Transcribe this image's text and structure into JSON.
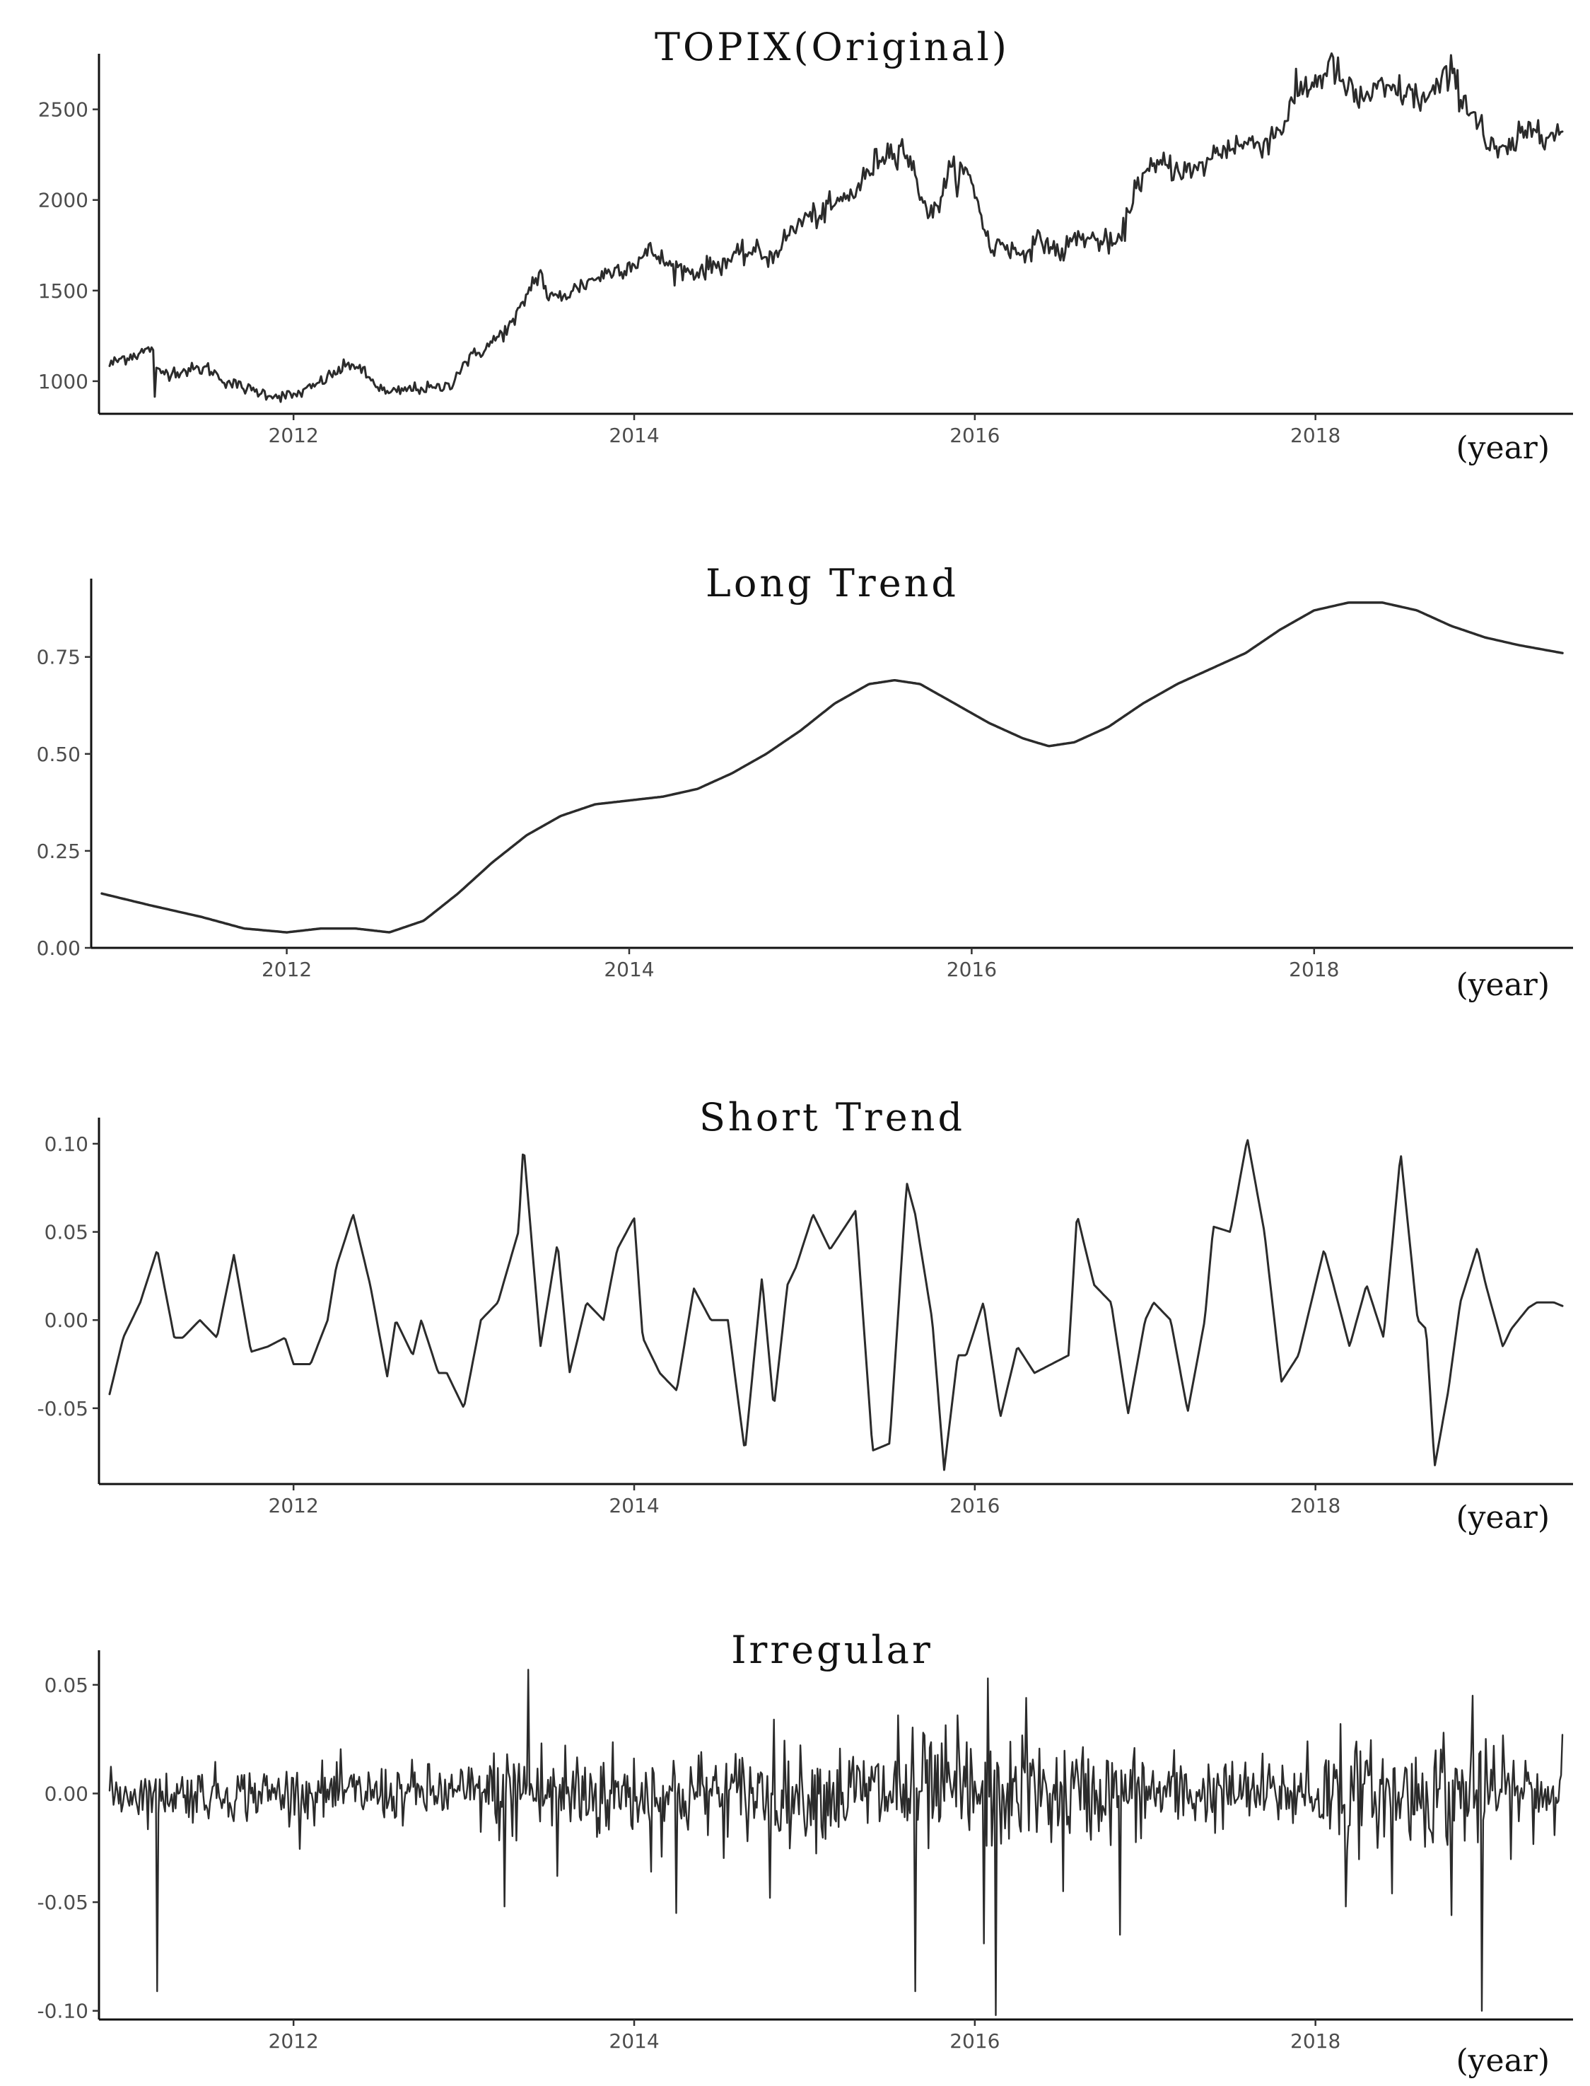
{
  "figure": {
    "background": "#ffffff",
    "line_color": "#2b2b2b",
    "axis_color": "#111111"
  },
  "chart_data": [
    {
      "type": "line",
      "title": "TOPIX(Original)",
      "xlabel": "(year)",
      "ylabel": "",
      "xlim": [
        2010.92,
        2019.45
      ],
      "ylim": [
        820,
        2760
      ],
      "x_ticks": [
        2012,
        2014,
        2016,
        2018
      ],
      "y_ticks": [
        1000,
        1500,
        2000,
        2500
      ],
      "grid": false,
      "series": [
        {
          "noise": 0.018,
          "spikes": [
            [
              2011.19,
              -230
            ]
          ],
          "x": [
            2010.92,
            2011.0,
            2011.15,
            2011.18,
            2011.19,
            2011.25,
            2011.5,
            2011.6,
            2011.75,
            2011.9,
            2012.0,
            2012.1,
            2012.25,
            2012.35,
            2012.45,
            2012.55,
            2012.7,
            2012.85,
            2012.92,
            2013.0,
            2013.15,
            2013.3,
            2013.4,
            2013.45,
            2013.5,
            2013.6,
            2013.75,
            2013.9,
            2014.0,
            2014.1,
            2014.2,
            2014.35,
            2014.5,
            2014.7,
            2014.8,
            2014.9,
            2015.0,
            2015.1,
            2015.3,
            2015.45,
            2015.58,
            2015.62,
            2015.7,
            2015.75,
            2015.85,
            2015.95,
            2016.0,
            2016.1,
            2016.15,
            2016.25,
            2016.4,
            2016.5,
            2016.6,
            2016.85,
            2016.95,
            2017.1,
            2017.3,
            2017.4,
            2017.5,
            2017.7,
            2017.8,
            2017.9,
            2018.0,
            2018.1,
            2018.15,
            2018.25,
            2018.35,
            2018.5,
            2018.65,
            2018.75,
            2018.8,
            2018.9,
            2018.97,
            2019.0,
            2019.1,
            2019.3,
            2019.4,
            2019.45
          ],
          "y": [
            1090,
            1130,
            1170,
            1200,
            1050,
            1050,
            1070,
            1000,
            950,
            920,
            920,
            960,
            1050,
            1100,
            1010,
            930,
            960,
            960,
            980,
            1100,
            1200,
            1330,
            1540,
            1600,
            1450,
            1480,
            1560,
            1620,
            1650,
            1720,
            1640,
            1600,
            1650,
            1720,
            1680,
            1800,
            1900,
            1920,
            2050,
            2250,
            2300,
            2200,
            2000,
            1900,
            2150,
            2150,
            2050,
            1700,
            1780,
            1700,
            1780,
            1700,
            1800,
            1750,
            2100,
            2200,
            2150,
            2250,
            2300,
            2320,
            2400,
            2600,
            2650,
            2750,
            2650,
            2550,
            2600,
            2600,
            2550,
            2650,
            2700,
            2500,
            2450,
            2300,
            2250,
            2420,
            2350,
            2380
          ]
        }
      ]
    },
    {
      "type": "line",
      "title": "Long Trend",
      "xlabel": "(year)",
      "ylabel": "",
      "xlim": [
        2010.92,
        2019.45
      ],
      "ylim": [
        0,
        0.93
      ],
      "x_ticks": [
        2012,
        2014,
        2016,
        2018
      ],
      "y_ticks": [
        0.0,
        0.25,
        0.5,
        0.75
      ],
      "y_tick_labels": [
        "0.00",
        "0.25",
        "0.50",
        "0.75"
      ],
      "grid": false,
      "series": [
        {
          "x": [
            2010.92,
            2011.2,
            2011.5,
            2011.75,
            2012.0,
            2012.2,
            2012.4,
            2012.6,
            2012.8,
            2013.0,
            2013.2,
            2013.4,
            2013.6,
            2013.8,
            2014.0,
            2014.2,
            2014.4,
            2014.6,
            2014.8,
            2015.0,
            2015.2,
            2015.4,
            2015.55,
            2015.7,
            2015.9,
            2016.1,
            2016.3,
            2016.45,
            2016.6,
            2016.8,
            2017.0,
            2017.2,
            2017.4,
            2017.6,
            2017.8,
            2018.0,
            2018.2,
            2018.4,
            2018.6,
            2018.8,
            2019.0,
            2019.2,
            2019.45
          ],
          "y": [
            0.14,
            0.11,
            0.08,
            0.05,
            0.04,
            0.05,
            0.05,
            0.04,
            0.07,
            0.14,
            0.22,
            0.29,
            0.34,
            0.37,
            0.38,
            0.39,
            0.41,
            0.45,
            0.5,
            0.56,
            0.63,
            0.68,
            0.69,
            0.68,
            0.63,
            0.58,
            0.54,
            0.52,
            0.53,
            0.57,
            0.63,
            0.68,
            0.72,
            0.76,
            0.82,
            0.87,
            0.89,
            0.89,
            0.87,
            0.83,
            0.8,
            0.78,
            0.76
          ]
        }
      ]
    },
    {
      "type": "line",
      "title": "Short Trend",
      "xlabel": "(year)",
      "ylabel": "",
      "xlim": [
        2010.92,
        2019.45
      ],
      "ylim": [
        -0.093,
        0.11
      ],
      "x_ticks": [
        2012,
        2014,
        2016,
        2018
      ],
      "y_ticks": [
        -0.05,
        0.0,
        0.05,
        0.1
      ],
      "y_tick_labels": [
        "-0.05",
        "0.00",
        "0.05",
        "0.10"
      ],
      "grid": false,
      "series": [
        {
          "x": [
            2010.92,
            2011.0,
            2011.1,
            2011.2,
            2011.3,
            2011.35,
            2011.45,
            2011.55,
            2011.65,
            2011.75,
            2011.85,
            2011.95,
            2012.0,
            2012.1,
            2012.2,
            2012.25,
            2012.35,
            2012.45,
            2012.55,
            2012.6,
            2012.7,
            2012.75,
            2012.85,
            2012.9,
            2013.0,
            2013.1,
            2013.2,
            2013.32,
            2013.35,
            2013.45,
            2013.55,
            2013.62,
            2013.72,
            2013.82,
            2013.9,
            2014.0,
            2014.05,
            2014.15,
            2014.25,
            2014.35,
            2014.45,
            2014.55,
            2014.65,
            2014.75,
            2014.82,
            2014.9,
            2014.95,
            2015.05,
            2015.15,
            2015.3,
            2015.4,
            2015.5,
            2015.6,
            2015.65,
            2015.75,
            2015.82,
            2015.9,
            2015.95,
            2016.05,
            2016.15,
            2016.25,
            2016.35,
            2016.45,
            2016.55,
            2016.6,
            2016.7,
            2016.8,
            2016.9,
            2017.0,
            2017.05,
            2017.15,
            2017.25,
            2017.35,
            2017.4,
            2017.5,
            2017.6,
            2017.7,
            2017.8,
            2017.9,
            2018.05,
            2018.1,
            2018.2,
            2018.3,
            2018.4,
            2018.5,
            2018.6,
            2018.65,
            2018.7,
            2018.78,
            2018.85,
            2018.95,
            2019.0,
            2019.1,
            2019.15,
            2019.25,
            2019.3,
            2019.4,
            2019.45
          ],
          "y": [
            -0.042,
            -0.01,
            0.01,
            0.04,
            -0.01,
            -0.01,
            0.0,
            -0.01,
            0.037,
            -0.018,
            -0.015,
            -0.01,
            -0.025,
            -0.025,
            0.0,
            0.03,
            0.06,
            0.02,
            -0.032,
            0.0,
            -0.02,
            0.0,
            -0.03,
            -0.03,
            -0.05,
            0.0,
            0.01,
            0.05,
            0.1,
            -0.015,
            0.044,
            -0.03,
            0.01,
            0.0,
            0.04,
            0.058,
            -0.01,
            -0.03,
            -0.04,
            0.018,
            0.0,
            0.0,
            -0.075,
            0.024,
            -0.05,
            0.02,
            0.03,
            0.06,
            0.04,
            0.062,
            -0.074,
            -0.07,
            0.078,
            0.06,
            0.0,
            -0.085,
            -0.02,
            -0.02,
            0.01,
            -0.055,
            -0.015,
            -0.03,
            -0.025,
            -0.02,
            0.06,
            0.02,
            0.01,
            -0.053,
            0.0,
            0.01,
            0.0,
            -0.052,
            0.0,
            0.053,
            0.05,
            0.103,
            0.05,
            -0.035,
            -0.02,
            0.04,
            0.022,
            -0.015,
            0.02,
            -0.01,
            0.095,
            0.0,
            -0.005,
            -0.083,
            -0.04,
            0.01,
            0.041,
            0.02,
            -0.015,
            -0.005,
            0.007,
            0.01,
            0.01,
            0.008
          ]
        }
      ]
    },
    {
      "type": "line",
      "title": "Irregular",
      "xlabel": "(year)",
      "ylabel": "",
      "xlim": [
        2010.92,
        2019.45
      ],
      "ylim": [
        -0.104,
        0.062
      ],
      "x_ticks": [
        2012,
        2014,
        2016,
        2018
      ],
      "y_ticks": [
        -0.1,
        -0.05,
        0.0,
        0.05
      ],
      "y_tick_labels": [
        "-0.10",
        "-0.05",
        "0.00",
        "0.05"
      ],
      "grid": false,
      "series": [
        {
          "x_start": 2010.92,
          "x_end": 2019.45,
          "volatility": {
            "x": [
              2010.92,
              2011.2,
              2013.0,
              2013.3,
              2013.5,
              2014.0,
              2015.0,
              2015.5,
              2016.0,
              2016.3,
              2017.0,
              2017.5,
              2017.9,
              2018.1,
              2018.5,
              2018.9,
              2019.1,
              2019.45
            ],
            "y": [
              0.006,
              0.007,
              0.008,
              0.014,
              0.016,
              0.012,
              0.012,
              0.015,
              0.016,
              0.014,
              0.012,
              0.009,
              0.01,
              0.014,
              0.013,
              0.015,
              0.012,
              0.011
            ]
          },
          "spikes": [
            [
              2011.2,
              -0.091
            ],
            [
              2013.24,
              -0.052
            ],
            [
              2013.38,
              0.057
            ],
            [
              2013.55,
              -0.038
            ],
            [
              2014.1,
              -0.036
            ],
            [
              2014.25,
              -0.055
            ],
            [
              2014.55,
              -0.02
            ],
            [
              2014.82,
              0.034
            ],
            [
              2014.8,
              -0.048
            ],
            [
              2015.55,
              0.036
            ],
            [
              2015.65,
              -0.091
            ],
            [
              2015.7,
              0.028
            ],
            [
              2015.9,
              0.036
            ],
            [
              2016.05,
              -0.069
            ],
            [
              2016.08,
              0.053
            ],
            [
              2016.12,
              -0.102
            ],
            [
              2016.3,
              0.044
            ],
            [
              2016.52,
              -0.045
            ],
            [
              2016.85,
              -0.065
            ],
            [
              2017.95,
              0.024
            ],
            [
              2018.15,
              0.032
            ],
            [
              2018.18,
              -0.052
            ],
            [
              2018.45,
              -0.046
            ],
            [
              2018.75,
              0.028
            ],
            [
              2018.8,
              -0.056
            ],
            [
              2018.92,
              0.045
            ],
            [
              2018.98,
              -0.1
            ],
            [
              2019.05,
              0.022
            ],
            [
              2019.45,
              0.027
            ]
          ]
        }
      ]
    }
  ]
}
